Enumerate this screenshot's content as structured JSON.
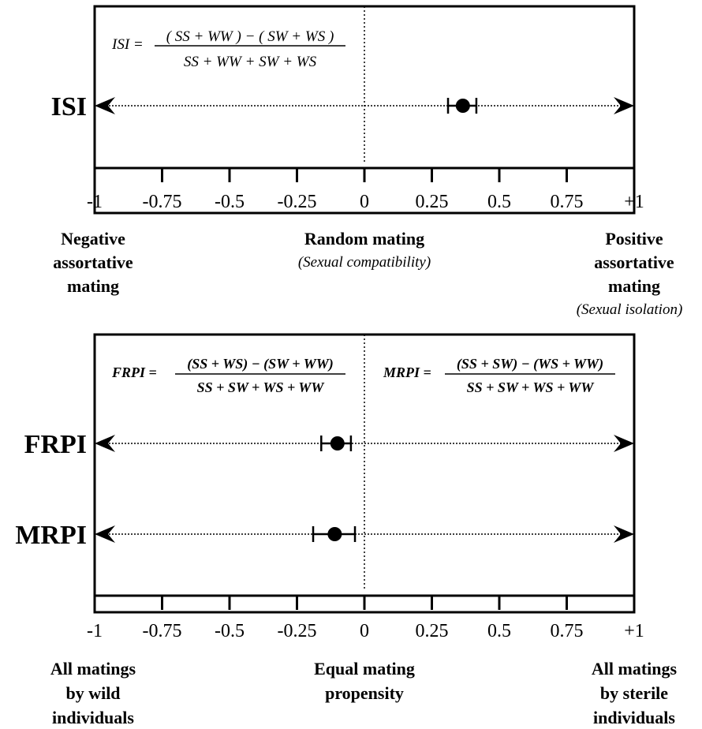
{
  "chart_data": [
    {
      "type": "scatter",
      "title": "",
      "xlabel": "",
      "ylabel": "",
      "xlim": [
        -1,
        1
      ],
      "ticks": [
        -1,
        -0.75,
        -0.5,
        -0.25,
        0,
        0.25,
        0.5,
        0.75,
        1
      ],
      "tick_labels": [
        "-1",
        "-0.75",
        "-0.5",
        "-0.25",
        "0",
        "0.25",
        "0.5",
        "0.75",
        "+1"
      ],
      "formula": {
        "lhs": "ISI =",
        "numerator": "( SS + WW ) − ( SW + WS )",
        "denominator": "SS + WW + SW + WS"
      },
      "series": [
        {
          "name": "ISI",
          "value": 0.365,
          "ci": [
            0.31,
            0.415
          ]
        }
      ],
      "annotations": {
        "left": {
          "bold_lines": [
            "Negative",
            "assortative",
            "mating"
          ],
          "italic": ""
        },
        "center": {
          "bold_lines": [
            "Random mating"
          ],
          "italic": "(Sexual compatibility)"
        },
        "right": {
          "bold_lines": [
            "Positive",
            "assortative",
            "mating"
          ],
          "italic": "(Sexual isolation)"
        }
      }
    },
    {
      "type": "scatter",
      "title": "",
      "xlabel": "",
      "ylabel": "",
      "xlim": [
        -1,
        1
      ],
      "ticks": [
        -1,
        -0.75,
        -0.5,
        -0.25,
        0,
        0.25,
        0.5,
        0.75,
        1
      ],
      "tick_labels": [
        "-1",
        "-0.75",
        "-0.5",
        "-0.25",
        "0",
        "0.25",
        "0.5",
        "0.75",
        "+1"
      ],
      "formulas": [
        {
          "lhs": "FRPI =",
          "numerator": "(SS + WS) − (SW + WW)",
          "denominator": "SS + SW + WS + WW"
        },
        {
          "lhs": "MRPI =",
          "numerator": "(SS + SW) − (WS + WW)",
          "denominator": "SS + SW + WS + WW"
        }
      ],
      "series": [
        {
          "name": "FRPI",
          "value": -0.1,
          "ci": [
            -0.16,
            -0.05
          ]
        },
        {
          "name": "MRPI",
          "value": -0.11,
          "ci": [
            -0.19,
            -0.035
          ]
        }
      ],
      "annotations": {
        "left": {
          "bold_lines": [
            "All matings",
            "by wild",
            "individuals"
          ],
          "italic": ""
        },
        "center": {
          "bold_lines": [
            "Equal mating",
            "propensity"
          ],
          "italic": ""
        },
        "right": {
          "bold_lines": [
            "All matings",
            "by sterile",
            "individuals"
          ],
          "italic": ""
        }
      }
    }
  ]
}
